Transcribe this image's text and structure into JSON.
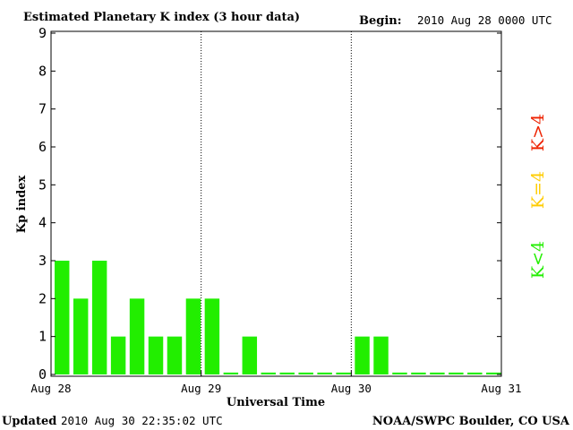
{
  "chart_data": {
    "type": "bar",
    "title": "Estimated Planetary K index (3 hour data)",
    "begin_label": "Begin:",
    "begin_value": "2010 Aug 28 0000 UTC",
    "xlabel": "Universal Time",
    "ylabel": "Kp index",
    "ylim": [
      0,
      9
    ],
    "y_ticks": [
      "0",
      "1",
      "2",
      "3",
      "4",
      "5",
      "6",
      "7",
      "8",
      "9"
    ],
    "x_tick_labels": [
      "Aug 28",
      "Aug 29",
      "Aug 30",
      "Aug 31"
    ],
    "values": [
      3,
      2,
      3,
      1,
      2,
      1,
      1,
      2,
      2,
      0.05,
      1,
      0.05,
      0.05,
      0.05,
      0.05,
      0.05,
      1,
      1,
      0.05,
      0.05,
      0.05,
      0.05,
      0.05,
      0.05
    ],
    "bar_color": "#22ee00",
    "legend": [
      {
        "label": "K<4",
        "color": "#22ee00"
      },
      {
        "label": "K=4",
        "color": "#ffcc00"
      },
      {
        "label": "K>4",
        "color": "#ee2200"
      }
    ],
    "grid": "day-boundary dotted lines"
  },
  "footer": {
    "updated_label": "Updated",
    "updated_value": "2010 Aug 30 22:35:02 UTC",
    "source": "NOAA/SWPC Boulder, CO USA"
  }
}
